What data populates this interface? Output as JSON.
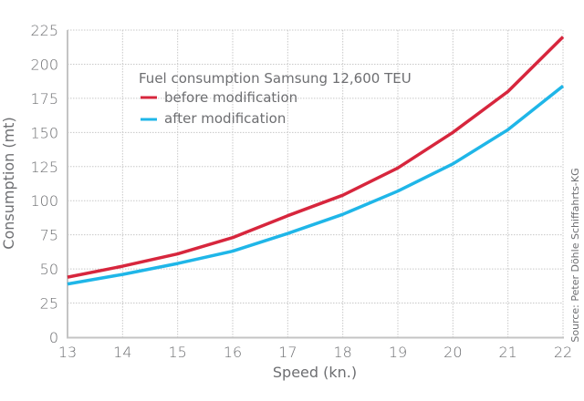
{
  "chart_data": {
    "type": "line",
    "title": "",
    "xlabel": "Speed (kn.)",
    "ylabel": "Consumption (mt)",
    "x": [
      13,
      14,
      15,
      16,
      17,
      18,
      19,
      20,
      21,
      22
    ],
    "xlim": [
      13,
      22
    ],
    "ylim": [
      0,
      225
    ],
    "xticks": [
      13,
      14,
      15,
      16,
      17,
      18,
      19,
      20,
      21,
      22
    ],
    "yticks": [
      0,
      25,
      50,
      75,
      100,
      125,
      150,
      175,
      200,
      225
    ],
    "grid": true,
    "legend": {
      "title": "Fuel consumption Samsung 12,600 TEU",
      "placement": "top-left"
    },
    "series": [
      {
        "name": "before modification",
        "color": "#d7263d",
        "values": [
          44,
          52,
          61,
          73,
          89,
          104,
          124,
          150,
          180,
          220
        ]
      },
      {
        "name": "after modification",
        "color": "#1fb6e8",
        "values": [
          39,
          46,
          54,
          63,
          76,
          90,
          107,
          127,
          152,
          184
        ]
      }
    ],
    "annotations": [
      "Source: Peter Döhle Schiffahrts-KG"
    ]
  }
}
